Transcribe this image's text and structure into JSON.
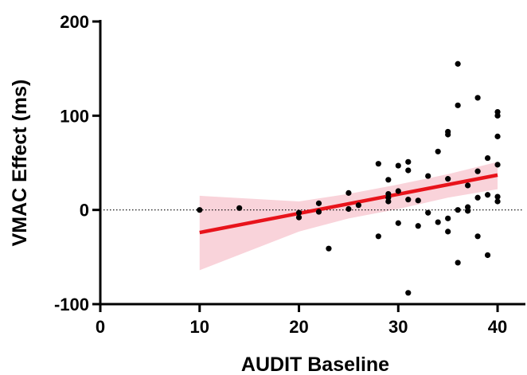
{
  "chart_data": {
    "type": "scatter",
    "xlabel": "AUDIT Baseline",
    "ylabel": "VMAC Effect (ms)",
    "xlim": [
      0,
      42
    ],
    "ylim": [
      -100,
      200
    ],
    "x_ticks": [
      0,
      10,
      20,
      30,
      40
    ],
    "y_ticks": [
      -100,
      0,
      100,
      200
    ],
    "x_tick_labels": [
      "0",
      "10",
      "20",
      "30",
      "40"
    ],
    "y_tick_labels": [
      "-100",
      "0",
      "100",
      "200"
    ],
    "reference_line": {
      "y": 0,
      "style": "dotted"
    },
    "regression": {
      "x_start": 10,
      "x_end": 40,
      "y_start": -24,
      "y_end": 37,
      "ci_upper": [
        [
          10,
          15
        ],
        [
          20,
          9
        ],
        [
          25,
          17
        ],
        [
          30,
          27
        ],
        [
          35,
          38
        ],
        [
          40,
          51
        ]
      ],
      "ci_lower": [
        [
          10,
          -64
        ],
        [
          20,
          -23
        ],
        [
          25,
          -9
        ],
        [
          30,
          1
        ],
        [
          35,
          13
        ],
        [
          40,
          22
        ]
      ],
      "line_color": "#e8131b",
      "band_color": "#f9d3da"
    },
    "point_color": "#000000",
    "points": [
      [
        10,
        0
      ],
      [
        14,
        2
      ],
      [
        20,
        -3
      ],
      [
        20,
        -8
      ],
      [
        22,
        7
      ],
      [
        22,
        -2
      ],
      [
        23,
        -41
      ],
      [
        25,
        18
      ],
      [
        25,
        1
      ],
      [
        26,
        5
      ],
      [
        28,
        49
      ],
      [
        28,
        -28
      ],
      [
        29,
        32
      ],
      [
        29,
        17
      ],
      [
        29,
        13
      ],
      [
        29,
        9
      ],
      [
        30,
        47
      ],
      [
        30,
        20
      ],
      [
        30,
        -14
      ],
      [
        31,
        51
      ],
      [
        31,
        42
      ],
      [
        31,
        11
      ],
      [
        31,
        -88
      ],
      [
        32,
        10
      ],
      [
        32,
        -17
      ],
      [
        33,
        36
      ],
      [
        33,
        -3
      ],
      [
        34,
        62
      ],
      [
        34,
        -13
      ],
      [
        35,
        83
      ],
      [
        35,
        80
      ],
      [
        35,
        33
      ],
      [
        35,
        -9
      ],
      [
        35,
        -23
      ],
      [
        36,
        155
      ],
      [
        36,
        111
      ],
      [
        36,
        0
      ],
      [
        36,
        -56
      ],
      [
        37,
        26
      ],
      [
        37,
        3
      ],
      [
        37,
        -1
      ],
      [
        38,
        119
      ],
      [
        38,
        41
      ],
      [
        38,
        13
      ],
      [
        38,
        -28
      ],
      [
        39,
        55
      ],
      [
        39,
        16
      ],
      [
        39,
        -48
      ],
      [
        40,
        104
      ],
      [
        40,
        100
      ],
      [
        40,
        78
      ],
      [
        40,
        48
      ],
      [
        40,
        14
      ],
      [
        40,
        9
      ]
    ]
  }
}
